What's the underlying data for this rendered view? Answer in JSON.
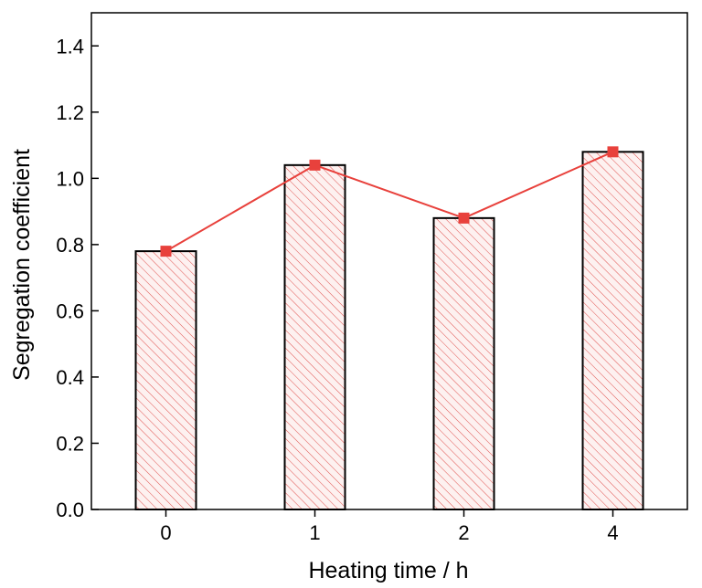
{
  "chart_data": {
    "type": "bar",
    "title": "",
    "xlabel": "Heating time / h",
    "ylabel": "Segregation coefficient",
    "categories": [
      "0",
      "1",
      "2",
      "4"
    ],
    "values": [
      0.78,
      1.04,
      0.88,
      1.08
    ],
    "ylim": [
      0.0,
      1.5
    ],
    "yticks": [
      "0.0",
      "0.2",
      "0.4",
      "0.6",
      "0.8",
      "1.0",
      "1.2",
      "1.4"
    ],
    "grid": false,
    "legend": "none",
    "bar_fill": "hatched",
    "overlay": "line-with-square-markers",
    "colors": {
      "hatch": "#e0524f",
      "bar_fill": "#fdf1f0",
      "bar_edge": "#000000",
      "line": "#e8413c",
      "marker": "#e8413c",
      "axis": "#000000"
    }
  }
}
